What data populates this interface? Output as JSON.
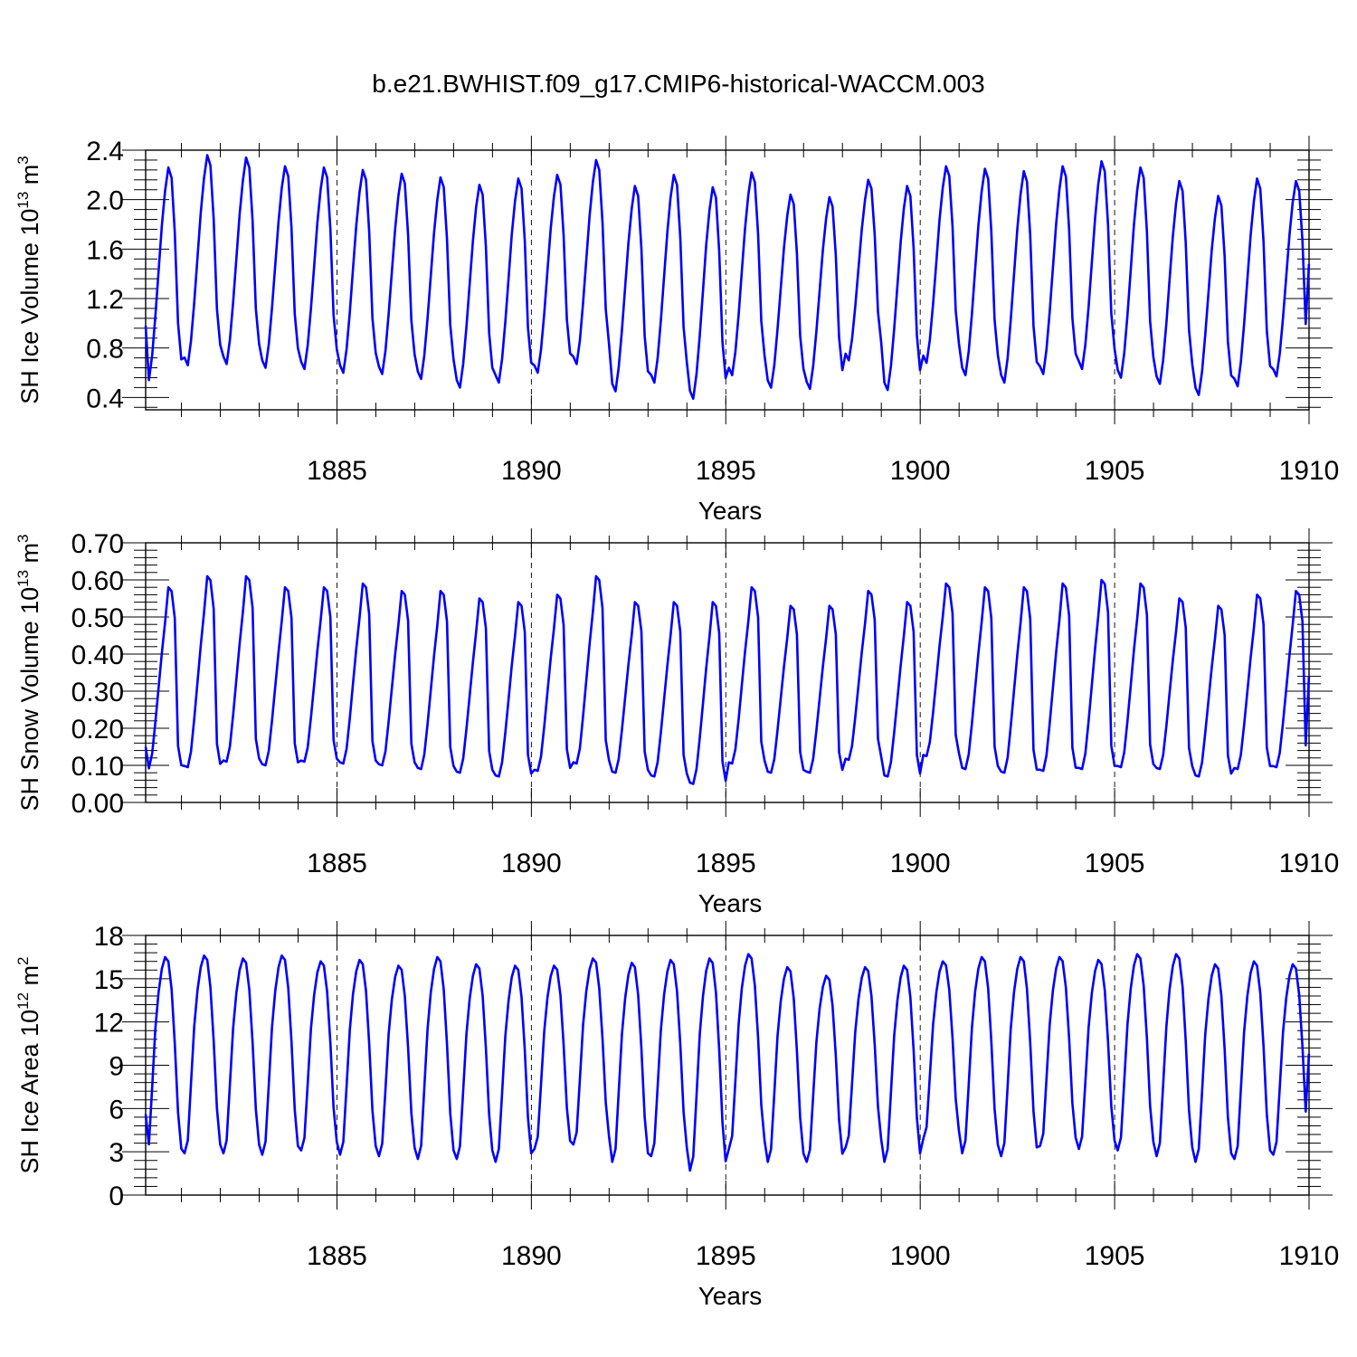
{
  "title": "b.e21.BWHIST.f09_g17.CMIP6-historical-WACCM.003",
  "colors": {
    "series": "#0000ff",
    "axis": "#000000",
    "background": "#ffffff"
  },
  "chart_data": [
    {
      "type": "line",
      "name": "ice-volume",
      "ylabel": "SH Ice Volume 10",
      "ylabel_exp": "13",
      "ylabel_unit": "m",
      "ylabel_unit_exp": "3",
      "xlabel": "Years",
      "xlim": [
        1880.08,
        1910.0
      ],
      "ylim": [
        0.3,
        2.4
      ],
      "yticks": [
        "0.4",
        "0.8",
        "1.2",
        "1.6",
        "2.0",
        "2.4"
      ],
      "yticks_values": [
        0.4,
        0.8,
        1.2,
        1.6,
        2.0,
        2.4
      ],
      "xticks": [
        "1885",
        "1890",
        "1895",
        "1900",
        "1905",
        "1910"
      ],
      "xticks_values": [
        1885,
        1890,
        1895,
        1900,
        1905,
        1910
      ],
      "grid_x_dashed": true,
      "climatology": [
        0.62,
        0.56,
        0.75,
        1.05,
        1.4,
        1.75,
        2.02,
        2.2,
        2.12,
        1.7,
        1.0,
        0.72
      ],
      "annual_max": [
        2.26,
        2.36,
        2.34,
        2.27,
        2.26,
        2.24,
        2.21,
        2.18,
        2.12,
        2.17,
        2.2,
        2.32,
        2.11,
        2.2,
        2.1,
        2.22,
        2.04,
        2.02,
        2.16,
        2.11,
        2.27,
        2.25,
        2.23,
        2.27,
        2.31,
        2.26,
        2.15,
        2.03,
        2.17,
        2.15
      ],
      "annual_min": [
        0.54,
        0.66,
        0.67,
        0.64,
        0.63,
        0.6,
        0.59,
        0.55,
        0.48,
        0.52,
        0.6,
        0.67,
        0.45,
        0.52,
        0.39,
        0.58,
        0.48,
        0.47,
        0.7,
        0.46,
        0.68,
        0.58,
        0.52,
        0.59,
        0.63,
        0.56,
        0.51,
        0.42,
        0.49,
        0.57
      ],
      "first_value": 0.98,
      "last_value": 1.48
    },
    {
      "type": "line",
      "name": "snow-volume",
      "ylabel": "SH Snow Volume 10",
      "ylabel_exp": "13",
      "ylabel_unit": "m",
      "ylabel_unit_exp": "3",
      "xlabel": "Years",
      "xlim": [
        1880.08,
        1910.0
      ],
      "ylim": [
        0.0,
        0.7
      ],
      "yticks": [
        "0.00",
        "0.10",
        "0.20",
        "0.30",
        "0.40",
        "0.50",
        "0.60",
        "0.70"
      ],
      "yticks_values": [
        0.0,
        0.1,
        0.2,
        0.3,
        0.4,
        0.5,
        0.6,
        0.7
      ],
      "xticks": [
        "1885",
        "1890",
        "1895",
        "1900",
        "1905",
        "1910"
      ],
      "xticks_values": [
        1885,
        1890,
        1895,
        1900,
        1905,
        1910
      ],
      "grid_x_dashed": true,
      "climatology": [
        0.095,
        0.092,
        0.13,
        0.21,
        0.3,
        0.39,
        0.47,
        0.56,
        0.55,
        0.48,
        0.15,
        0.1
      ],
      "annual_max": [
        0.58,
        0.61,
        0.61,
        0.58,
        0.58,
        0.59,
        0.57,
        0.57,
        0.55,
        0.54,
        0.56,
        0.61,
        0.54,
        0.54,
        0.54,
        0.58,
        0.53,
        0.53,
        0.57,
        0.54,
        0.59,
        0.58,
        0.58,
        0.59,
        0.6,
        0.59,
        0.55,
        0.53,
        0.56,
        0.57
      ],
      "annual_min": [
        0.092,
        0.095,
        0.11,
        0.1,
        0.11,
        0.105,
        0.1,
        0.09,
        0.08,
        0.07,
        0.085,
        0.105,
        0.08,
        0.07,
        0.05,
        0.105,
        0.08,
        0.08,
        0.115,
        0.07,
        0.125,
        0.09,
        0.08,
        0.085,
        0.09,
        0.095,
        0.09,
        0.07,
        0.09,
        0.095
      ],
      "first_value": 0.15,
      "last_value": 0.34
    },
    {
      "type": "line",
      "name": "ice-area",
      "ylabel": "SH Ice Area 10",
      "ylabel_exp": "12",
      "ylabel_unit": "m",
      "ylabel_unit_exp": "2",
      "xlabel": "Years",
      "xlim": [
        1880.08,
        1910.0
      ],
      "ylim": [
        0,
        18
      ],
      "yticks": [
        "0",
        "3",
        "6",
        "9",
        "12",
        "15",
        "18"
      ],
      "yticks_values": [
        0,
        3,
        6,
        9,
        12,
        15,
        18
      ],
      "xticks": [
        "1885",
        "1890",
        "1895",
        "1900",
        "1905",
        "1910"
      ],
      "xticks_values": [
        1885,
        1890,
        1895,
        1900,
        1905,
        1910
      ],
      "grid_x_dashed": true,
      "climatology": [
        2.7,
        3.6,
        7.5,
        11.5,
        14.0,
        15.6,
        16.4,
        16.1,
        14.2,
        10.5,
        5.8,
        3.3
      ],
      "annual_max": [
        16.5,
        16.6,
        16.4,
        16.6,
        16.2,
        16.3,
        15.9,
        16.5,
        16.0,
        15.9,
        15.9,
        16.4,
        16.1,
        16.3,
        16.4,
        16.7,
        15.8,
        15.2,
        15.8,
        15.9,
        16.2,
        16.5,
        16.5,
        16.5,
        16.3,
        16.7,
        16.7,
        16.0,
        16.2,
        16.0
      ],
      "annual_min": [
        2.6,
        2.9,
        2.9,
        2.8,
        3.1,
        2.8,
        2.7,
        2.5,
        2.5,
        2.3,
        3.2,
        3.5,
        2.3,
        2.7,
        1.7,
        3.2,
        2.3,
        2.3,
        3.3,
        2.3,
        3.9,
        2.9,
        2.7,
        3.4,
        3.2,
        3.1,
        2.7,
        2.3,
        2.5,
        2.8
      ],
      "first_value": 5.6,
      "last_value": 9.8
    }
  ]
}
